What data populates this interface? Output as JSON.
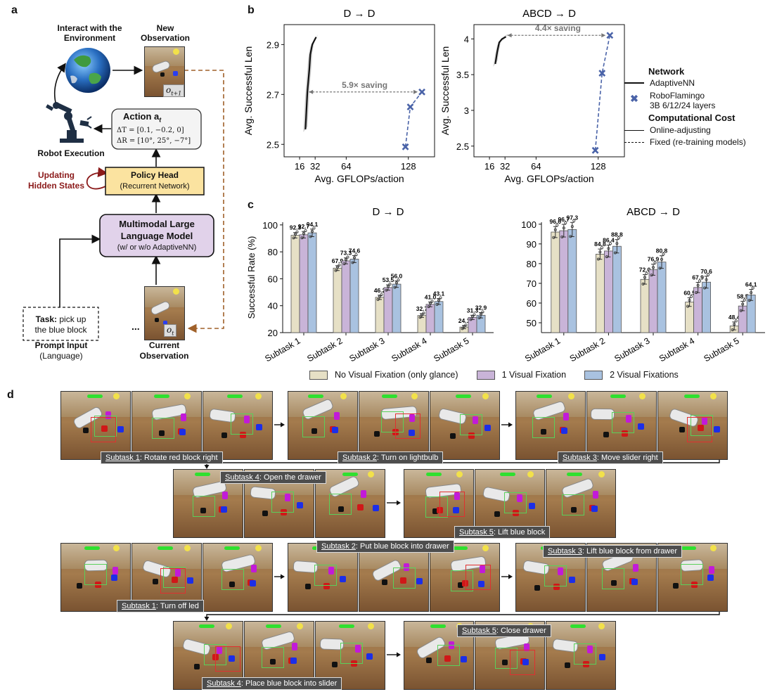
{
  "panel_a": {
    "letter": "a",
    "interact_label": "Interact with the Environment",
    "new_obs_label": "New Observation",
    "new_obs_sym": "o",
    "new_obs_sub": "t+1",
    "action_title": "Action a",
    "action_sub": "t",
    "delta_t": "ΔT = [0.1, −0.2, 0]",
    "delta_r": "ΔR = [10°, 25°, −7°]",
    "robot_label": "Robot Execution",
    "updating_label_1": "Updating",
    "updating_label_2": "Hidden States",
    "policy_title": "Policy Head",
    "policy_sub": "(Recurrent Network)",
    "mllm_1": "Multimodal Large",
    "mllm_2": "Language Model",
    "mllm_3": "(w/ or w/o AdaptiveNN)",
    "task_bold": "Task:",
    "task_rest": " pick up",
    "task_line2": "the blue block",
    "ellipsis": "...",
    "cur_obs_sym": "o",
    "cur_obs_sub": "t",
    "prompt_label": "Prompt Input",
    "prompt_sub": "(Language)",
    "current_label": "Current Observation"
  },
  "panel_b": {
    "letter": "b",
    "legend": {
      "network_title": "Network",
      "adaptive": "AdaptiveNN",
      "roboflamingo_1": "RoboFlamingo",
      "roboflamingo_2": "3B 6/12/24 layers",
      "cost_title": "Computational Cost",
      "online": "Online-adjusting",
      "fixed": "Fixed (re-training models)"
    }
  },
  "panel_c": {
    "letter": "c"
  },
  "panel_d": {
    "letter": "d",
    "captions": [
      {
        "prefix": "Subtask 1",
        "text": ": Rotate red block right"
      },
      {
        "prefix": "Subtask 2",
        "text": ": Turn on lightbulb"
      },
      {
        "prefix": "Subtask 3",
        "text": ": Move slider right"
      },
      {
        "prefix": "Subtask 4",
        "text": ": Open the drawer"
      },
      {
        "prefix": "Subtask 5",
        "text": ": Lift blue block"
      },
      {
        "prefix": "Subtask 1",
        "text": ": Turn off led"
      },
      {
        "prefix": "Subtask 2",
        "text": ": Put blue block into drawer"
      },
      {
        "prefix": "Subtask 3",
        "text": ": Lift blue block from drawer"
      },
      {
        "prefix": "Subtask 4",
        "text": ": Place blue block into slider"
      },
      {
        "prefix": "Subtask 5",
        "text": ": Close drawer"
      }
    ]
  },
  "colors": {
    "adaptive_line": "#111111",
    "roboflamingo": "#4a63a8",
    "saving_arrow": "#777777",
    "no_fixation": "#e6e0c6",
    "one_fixation": "#c9b4d8",
    "two_fixation": "#a9c2e0",
    "policy_fill": "#fbe3a0",
    "mllm_fill": "#e1d2ea",
    "updating_red": "#8b1a1a",
    "dashed_arrow": "#a0612a"
  },
  "chart_data": [
    {
      "id": "b-left",
      "type": "line",
      "title": "D → D",
      "xlabel": "Avg. GFLOPs/action",
      "ylabel": "Avg. Successful Len",
      "xticks": [
        16,
        32,
        64,
        128
      ],
      "yticks": [
        2.5,
        2.7,
        2.9
      ],
      "xlim": [
        0,
        155
      ],
      "ylim": [
        2.45,
        2.98
      ],
      "series": [
        {
          "name": "AdaptiveNN",
          "style": "solid",
          "x": [
            22,
            24,
            26,
            27,
            29,
            33
          ],
          "y": [
            2.56,
            2.71,
            2.8,
            2.86,
            2.9,
            2.93
          ]
        },
        {
          "name": "RoboFlamingo",
          "style": "dashed-x",
          "x": [
            125,
            130,
            142
          ],
          "y": [
            2.49,
            2.65,
            2.71
          ]
        }
      ],
      "annotation": {
        "text": "5.9× saving",
        "y": 2.71,
        "x_from": 24,
        "x_to": 142
      }
    },
    {
      "id": "b-right",
      "type": "line",
      "title": "ABCD → D",
      "xlabel": "Avg. GFLOPs/action",
      "ylabel": "Avg. Successful Len",
      "xticks": [
        16,
        32,
        64,
        128
      ],
      "yticks": [
        2.5,
        3.0,
        3.5,
        4.0
      ],
      "xlim": [
        0,
        155
      ],
      "ylim": [
        2.35,
        4.2
      ],
      "series": [
        {
          "name": "AdaptiveNN",
          "style": "solid",
          "x": [
            22,
            24,
            26,
            29,
            33
          ],
          "y": [
            3.65,
            3.82,
            3.95,
            4.0,
            4.03
          ]
        },
        {
          "name": "RoboFlamingo",
          "style": "dashed-x",
          "x": [
            125,
            132,
            140
          ],
          "y": [
            2.44,
            3.52,
            4.05
          ]
        }
      ],
      "annotation": {
        "text": "4.4× saving",
        "y": 4.05,
        "x_from": 33,
        "x_to": 140
      }
    },
    {
      "id": "c-left",
      "type": "bar",
      "title": "D → D",
      "ylabel": "Successful Rate (%)",
      "categories": [
        "Subtask 1",
        "Subtask 2",
        "Subtask 3",
        "Subtask 4",
        "Subtask 5"
      ],
      "ylim": [
        20,
        102
      ],
      "yticks": [
        20,
        40,
        60,
        80,
        100
      ],
      "series": [
        {
          "name": "No Visual Fixation (only glance)",
          "values": [
            92.3,
            67.9,
            46.2,
            32.7,
            24.1
          ]
        },
        {
          "name": "1 Visual Fixation",
          "values": [
            92.7,
            73.3,
            53.5,
            41.0,
            31.3
          ]
        },
        {
          "name": "2 Visual Fixations",
          "values": [
            94.1,
            74.6,
            56.0,
            43.1,
            32.9
          ]
        }
      ]
    },
    {
      "id": "c-right",
      "type": "bar",
      "title": "ABCD → D",
      "categories": [
        "Subtask 1",
        "Subtask 2",
        "Subtask 3",
        "Subtask 4",
        "Subtask 5"
      ],
      "ylim": [
        45,
        101
      ],
      "yticks": [
        50,
        60,
        70,
        80,
        90,
        100
      ],
      "series": [
        {
          "name": "No Visual Fixation (only glance)",
          "values": [
            96.0,
            84.8,
            72.0,
            60.5,
            48.4
          ]
        },
        {
          "name": "1 Visual Fixation",
          "values": [
            96.7,
            86.4,
            76.9,
            67.9,
            58.5
          ]
        },
        {
          "name": "2 Visual Fixations",
          "values": [
            97.3,
            88.8,
            80.8,
            70.6,
            64.1
          ]
        }
      ]
    }
  ]
}
